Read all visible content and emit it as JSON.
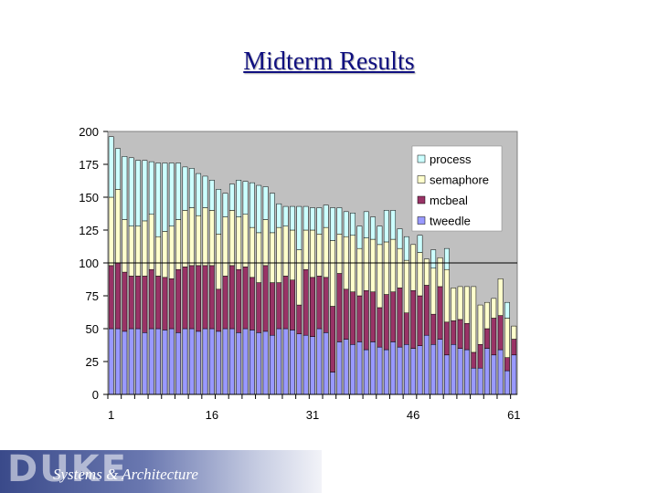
{
  "slide": {
    "title": "Midterm Results"
  },
  "footer": {
    "logo": "DUKE",
    "text": "Systems & Architecture"
  },
  "chart_data": {
    "type": "bar",
    "stacked": true,
    "title": "",
    "xlabel": "",
    "ylabel": "",
    "ylim": [
      0,
      200
    ],
    "yticks": [
      0,
      25,
      50,
      75,
      100,
      125,
      150,
      175,
      200
    ],
    "xtick_labels": [
      "1",
      "16",
      "31",
      "46",
      "61"
    ],
    "reference_line": 100,
    "plot_background": "#c0c0c0",
    "legend_position": "top-right",
    "categories": [
      "1",
      "2",
      "3",
      "4",
      "5",
      "6",
      "7",
      "8",
      "9",
      "10",
      "11",
      "12",
      "13",
      "14",
      "15",
      "16",
      "17",
      "18",
      "19",
      "20",
      "21",
      "22",
      "23",
      "24",
      "25",
      "26",
      "27",
      "28",
      "29",
      "30",
      "31",
      "32",
      "33",
      "34",
      "35",
      "36",
      "37",
      "38",
      "39",
      "40",
      "41",
      "42",
      "43",
      "44",
      "45",
      "46",
      "47",
      "48",
      "49",
      "50",
      "51",
      "52",
      "53",
      "54",
      "55",
      "56",
      "57",
      "58",
      "59",
      "60",
      "61"
    ],
    "series": [
      {
        "name": "tweedle",
        "color": "#9999ff",
        "values": [
          50,
          50,
          48,
          50,
          50,
          47,
          50,
          50,
          49,
          50,
          47,
          50,
          50,
          48,
          50,
          50,
          48,
          50,
          50,
          47,
          50,
          49,
          47,
          48,
          45,
          50,
          50,
          49,
          46,
          45,
          44,
          50,
          47,
          17,
          40,
          42,
          38,
          40,
          34,
          40,
          36,
          34,
          40,
          36,
          38,
          35,
          37,
          45,
          38,
          42,
          30,
          38,
          35,
          34,
          20,
          20,
          35,
          30,
          34,
          18,
          30
        ]
      },
      {
        "name": "mcbeal",
        "color": "#993366",
        "values": [
          48,
          50,
          45,
          40,
          40,
          43,
          45,
          40,
          40,
          38,
          48,
          47,
          48,
          50,
          48,
          48,
          32,
          40,
          48,
          48,
          47,
          40,
          38,
          50,
          40,
          35,
          40,
          38,
          22,
          50,
          45,
          40,
          42,
          50,
          52,
          38,
          40,
          35,
          45,
          38,
          30,
          42,
          38,
          45,
          24,
          44,
          38,
          38,
          23,
          40,
          25,
          18,
          22,
          20,
          12,
          18,
          15,
          28,
          26,
          10,
          12
        ]
      },
      {
        "name": "semaphore",
        "color": "#ffffcc",
        "values": [
          52,
          56,
          40,
          38,
          38,
          42,
          42,
          30,
          35,
          40,
          38,
          43,
          44,
          38,
          44,
          42,
          42,
          45,
          42,
          40,
          40,
          38,
          38,
          35,
          38,
          42,
          38,
          38,
          42,
          30,
          36,
          32,
          38,
          50,
          30,
          40,
          43,
          36,
          40,
          40,
          48,
          40,
          40,
          30,
          40,
          35,
          33,
          20,
          35,
          22,
          40,
          25,
          25,
          28,
          50,
          30,
          20,
          15,
          28,
          30,
          10
        ]
      },
      {
        "name": "process",
        "color": "#ccffff",
        "values": [
          46,
          31,
          48,
          52,
          50,
          46,
          40,
          56,
          52,
          48,
          43,
          33,
          30,
          32,
          24,
          23,
          34,
          18,
          20,
          28,
          25,
          34,
          36,
          25,
          30,
          18,
          15,
          18,
          33,
          18,
          17,
          20,
          17,
          25,
          20,
          19,
          17,
          17,
          20,
          17,
          14,
          24,
          22,
          15,
          18,
          0,
          13,
          0,
          14,
          0,
          16,
          0,
          0,
          0,
          0,
          0,
          0,
          0,
          0,
          12,
          0
        ]
      }
    ]
  }
}
